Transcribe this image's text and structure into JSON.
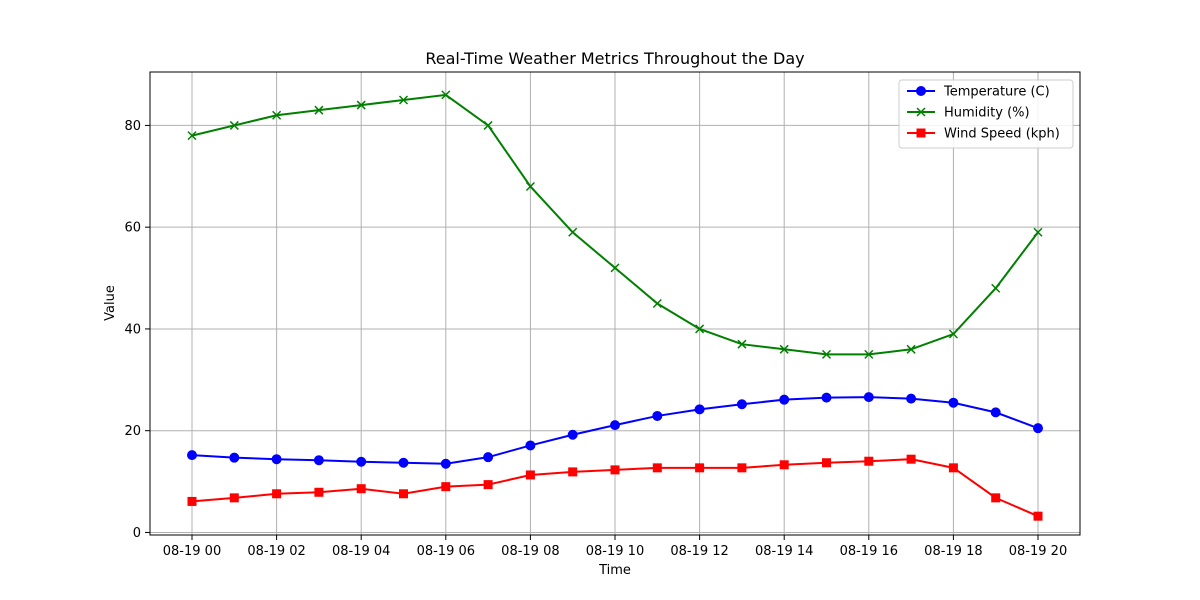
{
  "chart_data": {
    "type": "line",
    "title": "Real-Time Weather Metrics Throughout the Day",
    "xlabel": "Time",
    "ylabel": "Value",
    "x": [
      "08-19 00",
      "08-19 01",
      "08-19 02",
      "08-19 03",
      "08-19 04",
      "08-19 05",
      "08-19 06",
      "08-19 07",
      "08-19 08",
      "08-19 09",
      "08-19 10",
      "08-19 11",
      "08-19 12",
      "08-19 13",
      "08-19 14",
      "08-19 15",
      "08-19 16",
      "08-19 17",
      "08-19 18",
      "08-19 19",
      "08-19 20"
    ],
    "x_tick_labels": [
      "08-19 00",
      "08-19 02",
      "08-19 04",
      "08-19 06",
      "08-19 08",
      "08-19 10",
      "08-19 12",
      "08-19 14",
      "08-19 16",
      "08-19 18",
      "08-19 20"
    ],
    "y_ticks": [
      0,
      20,
      40,
      60,
      80
    ],
    "ylim": [
      -0.5,
      90.5
    ],
    "grid": true,
    "legend_position": "top-right",
    "series": [
      {
        "name": "Temperature (C)",
        "color": "#0000ff",
        "marker": "circle",
        "values": [
          15.2,
          14.7,
          14.4,
          14.2,
          13.9,
          13.7,
          13.5,
          14.8,
          17.1,
          19.2,
          21.1,
          22.9,
          24.2,
          25.2,
          26.1,
          26.5,
          26.6,
          26.3,
          25.5,
          23.6,
          20.5
        ]
      },
      {
        "name": "Humidity (%)",
        "color": "#008000",
        "marker": "x",
        "values": [
          78,
          80,
          82,
          83,
          84,
          85,
          86,
          80,
          68,
          59,
          52,
          45,
          40,
          37,
          36,
          35,
          35,
          36,
          39,
          48,
          59
        ]
      },
      {
        "name": "Wind Speed (kph)",
        "color": "#ff0000",
        "marker": "square",
        "values": [
          6.1,
          6.8,
          7.6,
          7.9,
          8.6,
          7.6,
          9.0,
          9.4,
          11.3,
          11.9,
          12.3,
          12.7,
          12.7,
          12.7,
          13.3,
          13.7,
          14.0,
          14.4,
          12.7,
          6.8,
          3.2
        ]
      }
    ]
  }
}
